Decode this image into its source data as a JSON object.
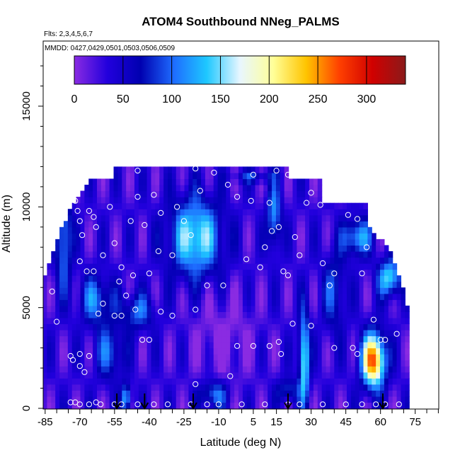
{
  "chart_data": {
    "type": "heatmap",
    "title": "ATOM4 Southbound NNeg_PALMS",
    "subtitle": "Flts: 2,3,4,5,6,7",
    "annotation": "MMDD: 0427,0429,0501,0503,0506,0509",
    "xlabel": "Latitude (deg N)",
    "ylabel": "Altitude (m)",
    "xlim": [
      -87,
      90
    ],
    "ylim": [
      0,
      18000
    ],
    "x_ticks": [
      -85,
      -70,
      -55,
      -40,
      -25,
      -10,
      5,
      15,
      30,
      45,
      60,
      75
    ],
    "x_tick_labels": [
      "-85",
      "-70",
      "-55",
      "-40",
      "-25",
      "-10",
      "5",
      "15",
      "30",
      "45",
      "60",
      "75"
    ],
    "y_ticks": [
      0,
      5000,
      10000,
      15000
    ],
    "y_tick_labels": [
      "0",
      "5000",
      "10000",
      "15000"
    ],
    "colorbar": {
      "range": [
        0,
        340
      ],
      "ticks": [
        0,
        50,
        100,
        150,
        200,
        250,
        300
      ],
      "tick_labels": [
        "0",
        "50",
        "100",
        "150",
        "200",
        "250",
        "300"
      ],
      "colors": [
        "#8a2be2",
        "#2200dd",
        "#0000b0",
        "#1e6cff",
        "#1ec8ff",
        "#e8f6ff",
        "#ffff99",
        "#ffc400",
        "#ff4000",
        "#d00000",
        "#8b1a1a"
      ]
    },
    "grid": false,
    "sample_points": [
      [
        -82,
        5800
      ],
      [
        -80,
        4300
      ],
      [
        -72,
        10300
      ],
      [
        -71,
        9800
      ],
      [
        -70,
        9300
      ],
      [
        -69,
        8600
      ],
      [
        -70,
        7300
      ],
      [
        -66,
        9800
      ],
      [
        -64,
        9500
      ],
      [
        -63,
        9000
      ],
      [
        -67,
        6800
      ],
      [
        -64,
        6800
      ],
      [
        -60,
        7600
      ],
      [
        -62,
        4700
      ],
      [
        -60,
        5200
      ],
      [
        -57,
        10000
      ],
      [
        -55,
        8200
      ],
      [
        -53,
        6300
      ],
      [
        -52,
        7000
      ],
      [
        -48,
        9300
      ],
      [
        -47,
        6600
      ],
      [
        -45,
        10500
      ],
      [
        -42,
        9100
      ],
      [
        -38,
        10600
      ],
      [
        -40,
        6700
      ],
      [
        -36,
        7800
      ],
      [
        -35,
        9700
      ],
      [
        -30,
        7600
      ],
      [
        -28,
        10000
      ],
      [
        -25,
        9300
      ],
      [
        -22,
        8600
      ],
      [
        -18,
        10800
      ],
      [
        -12,
        11700
      ],
      [
        -6,
        11100
      ],
      [
        -2,
        10500
      ],
      [
        4,
        10300
      ],
      [
        12,
        10200
      ],
      [
        -55,
        4600
      ],
      [
        -52,
        4600
      ],
      [
        -50,
        5600
      ],
      [
        -46,
        4900
      ],
      [
        -43,
        3400
      ],
      [
        -40,
        3400
      ],
      [
        -35,
        4800
      ],
      [
        -30,
        4600
      ],
      [
        -20,
        4900
      ],
      [
        -15,
        6100
      ],
      [
        -8,
        6100
      ],
      [
        -2,
        3100
      ],
      [
        5,
        3100
      ],
      [
        12,
        3100
      ],
      [
        16,
        3300
      ],
      [
        17,
        2700
      ],
      [
        2,
        7400
      ],
      [
        8,
        7000
      ],
      [
        10,
        8000
      ],
      [
        13,
        8800
      ],
      [
        16,
        9000
      ],
      [
        18,
        6800
      ],
      [
        20,
        6600
      ],
      [
        23,
        8500
      ],
      [
        25,
        7600
      ],
      [
        28,
        10200
      ],
      [
        30,
        10700
      ],
      [
        34,
        10100
      ],
      [
        35,
        7200
      ],
      [
        38,
        6100
      ],
      [
        40,
        6700
      ],
      [
        46,
        9600
      ],
      [
        50,
        9400
      ],
      [
        52,
        6700
      ],
      [
        54,
        8000
      ],
      [
        57,
        4400
      ],
      [
        60,
        3400
      ],
      [
        62,
        3400
      ],
      [
        67,
        3700
      ],
      [
        70,
        7200
      ],
      [
        -74,
        2600
      ],
      [
        -73,
        2400
      ],
      [
        -70,
        2700
      ],
      [
        -66,
        2600
      ],
      [
        -70,
        2100
      ],
      [
        -68,
        1800
      ],
      [
        -74,
        300
      ],
      [
        -72,
        300
      ],
      [
        -70,
        200
      ],
      [
        -66,
        200
      ],
      [
        -63,
        300
      ],
      [
        -61,
        200
      ],
      [
        -55,
        200
      ],
      [
        -52,
        200
      ],
      [
        -45,
        200
      ],
      [
        -38,
        200
      ],
      [
        -32,
        200
      ],
      [
        -22,
        200
      ],
      [
        -15,
        200
      ],
      [
        -10,
        200
      ],
      [
        0,
        200
      ],
      [
        10,
        200
      ],
      [
        20,
        200
      ],
      [
        25,
        200
      ],
      [
        35,
        200
      ],
      [
        45,
        200
      ],
      [
        52,
        200
      ],
      [
        58,
        200
      ],
      [
        62,
        200
      ],
      [
        68,
        200
      ],
      [
        48,
        3000
      ],
      [
        50,
        2700
      ],
      [
        40,
        3000
      ],
      [
        -20,
        1200
      ],
      [
        -5,
        1600
      ],
      [
        30,
        4100
      ],
      [
        22,
        4200
      ],
      [
        -60,
        11600
      ],
      [
        -45,
        11800
      ],
      [
        -20,
        11900
      ],
      [
        15,
        11800
      ],
      [
        20,
        11600
      ],
      [
        5,
        11600
      ]
    ],
    "flight_arrows_latitude": [
      -54,
      -42,
      -21,
      20,
      61
    ]
  }
}
